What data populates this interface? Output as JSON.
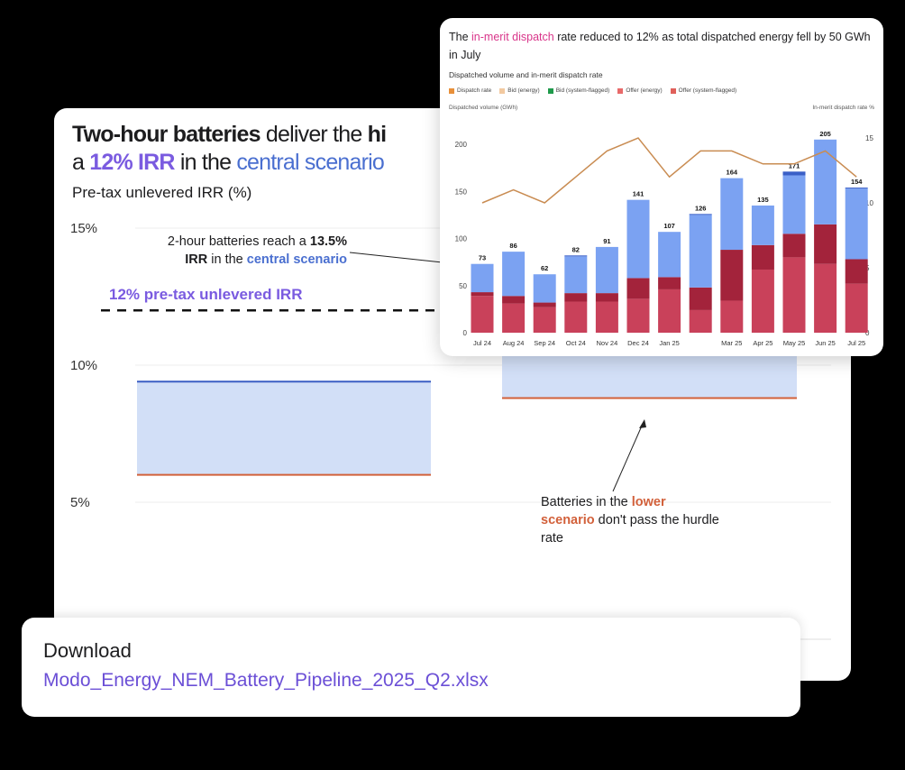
{
  "main_card": {
    "title_parts": {
      "a": "Two-hour batteries",
      "b": " deliver the ",
      "c": "hi",
      "d": "a ",
      "e": "12% IRR",
      "f": " in the ",
      "g": "central scenario"
    },
    "subtitle": "Pre-tax unlevered IRR (%)",
    "annotation_central": {
      "a": "2-hour batteries reach a ",
      "b": "13.5%",
      "c": "IRR",
      "d": " in the ",
      "e": "central scenario"
    },
    "hurdle_label": "12% pre-tax unlevered IRR",
    "annotation_lower": {
      "a": "Batteries in the ",
      "b": "lower scenario",
      "c": " don't pass the hurdle rate"
    }
  },
  "front_card": {
    "title": {
      "a": "The ",
      "b": "in-merit dispatch",
      "c": " rate reduced to 12% as total dispatched energy fell by 50 GWh in July"
    },
    "subtitle": "Dispatched volume and in-merit dispatch rate",
    "y_left_label": "Dispatched volume (GWh)",
    "y_right_label": "In-merit dispatch rate %"
  },
  "download": {
    "label": "Download",
    "file": "Modo_Energy_NEM_Battery_Pipeline_2025_Q2.xlsx"
  },
  "chart_data": [
    {
      "type": "bar",
      "subtitle": "Pre-tax unlevered IRR (%)",
      "y_ticks": [
        "15%",
        "10%",
        "5%"
      ],
      "ylim": [
        0,
        15
      ],
      "grid": true,
      "hurdle": 12,
      "series": [
        {
          "ranges": [
            [
              6.0,
              9.4
            ],
            [
              8.8,
              13.5
            ]
          ]
        }
      ],
      "colors": {
        "fill": "#d2dff7",
        "upper": "#3b5fc4",
        "lower": "#d2603a",
        "hurdle": "#111111"
      }
    },
    {
      "type": "bar",
      "title": "The in-merit dispatch rate reduced to 12% as total dispatched energy fell by 50 GWh in July",
      "categories": [
        "Jul 24",
        "Aug 24",
        "Sep 24",
        "Oct 24",
        "Nov 24",
        "Dec 24",
        "Jan 25",
        "",
        "Mar 25",
        "Apr 25",
        "May 25",
        "Jun 25",
        "Jul 25"
      ],
      "totals": [
        "73",
        "86",
        "62",
        "82",
        "91",
        "141",
        "107",
        "126",
        "164",
        "135",
        "171",
        "205",
        "154"
      ],
      "series": [
        {
          "name": "Offer (energy)",
          "color": "#c9415a",
          "values": [
            39,
            31,
            27,
            33,
            33,
            36,
            46,
            24,
            34,
            67,
            80,
            73,
            52
          ]
        },
        {
          "name": "Offer (system-flagged)",
          "color": "#a3233b",
          "values": [
            4,
            8,
            5,
            9,
            9,
            22,
            13,
            24,
            54,
            26,
            25,
            42,
            26
          ]
        },
        {
          "name": "Bid (energy)",
          "color": "#7ba2f2",
          "values": [
            30,
            47,
            30,
            39,
            49,
            83,
            48,
            77,
            76,
            42,
            62,
            90,
            75
          ]
        },
        {
          "name": "Bid (system-flagged)",
          "color": "#3a5fc7",
          "values": [
            0,
            0,
            0,
            1,
            0,
            0,
            0,
            1,
            0,
            0,
            4,
            0,
            1
          ]
        },
        {
          "name": "Dispatch rate",
          "color": "#c98c52",
          "type": "line",
          "axis": "right",
          "values": [
            10,
            11,
            10,
            12,
            14,
            15,
            12,
            14,
            14,
            13,
            13,
            14,
            12
          ]
        }
      ],
      "legend": [
        {
          "name": "Dispatch rate",
          "color": "#e8903a"
        },
        {
          "name": "Bid (energy)",
          "color": "#f2c9a0"
        },
        {
          "name": "Bid (system-flagged)",
          "color": "#1f9a4b"
        },
        {
          "name": "Offer (energy)",
          "color": "#e86a6a"
        },
        {
          "name": "Offer (system-flagged)",
          "color": "#e0605a"
        }
      ],
      "legend_position": "top-left",
      "y_left": {
        "label": "Dispatched volume (GWh)",
        "ticks": [
          "0",
          "50",
          "100",
          "150",
          "200"
        ],
        "range": [
          0,
          200
        ]
      },
      "y_right": {
        "label": "In-merit dispatch rate %",
        "ticks": [
          "0",
          "5",
          "10",
          "15"
        ],
        "range": [
          0,
          15
        ]
      }
    }
  ]
}
